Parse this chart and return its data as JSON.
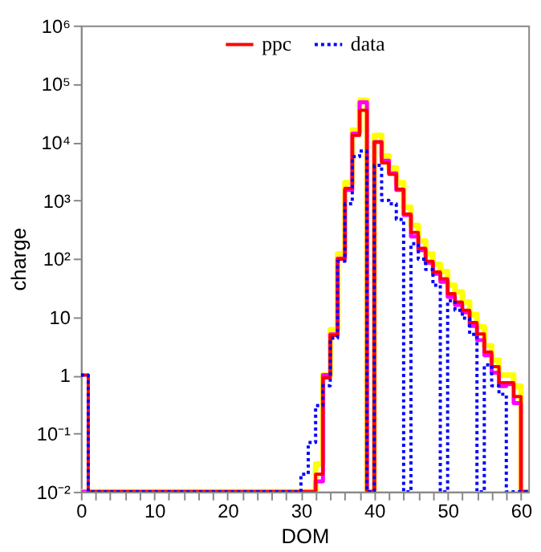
{
  "chart_data": {
    "type": "histogram",
    "xlabel": "DOM",
    "ylabel": "charge",
    "bins": [
      0,
      1,
      2,
      3,
      4,
      5,
      6,
      7,
      8,
      9,
      10,
      11,
      12,
      13,
      14,
      15,
      16,
      17,
      18,
      19,
      20,
      21,
      22,
      23,
      24,
      25,
      26,
      27,
      28,
      29,
      30,
      31,
      32,
      33,
      34,
      35,
      36,
      37,
      38,
      39,
      40,
      41,
      42,
      43,
      44,
      45,
      46,
      47,
      48,
      49,
      50,
      51,
      52,
      53,
      54,
      55,
      56,
      57,
      58,
      59,
      60,
      61
    ],
    "series": [
      {
        "color": "#ffff00",
        "values": [
          null,
          null,
          null,
          null,
          null,
          null,
          null,
          null,
          null,
          null,
          null,
          null,
          null,
          null,
          null,
          null,
          null,
          null,
          null,
          null,
          null,
          null,
          null,
          null,
          null,
          null,
          null,
          null,
          null,
          null,
          null,
          null,
          0.03,
          1,
          6,
          120,
          2000,
          16000,
          52000,
          null,
          13000,
          5800,
          3600,
          2000,
          760,
          370,
          200,
          120,
          80,
          60,
          35,
          27,
          18,
          11,
          6.8,
          3.2,
          1.8,
          1,
          1,
          0.65,
          null
        ]
      },
      {
        "color": "#ff00ff",
        "values": [
          null,
          null,
          null,
          null,
          null,
          null,
          null,
          null,
          null,
          null,
          null,
          null,
          null,
          null,
          null,
          null,
          null,
          null,
          null,
          null,
          null,
          null,
          null,
          null,
          null,
          null,
          null,
          null,
          null,
          null,
          null,
          null,
          0.015,
          1,
          5,
          100,
          1500,
          14000,
          48000,
          null,
          10000,
          4800,
          2900,
          1500,
          560,
          240,
          140,
          85,
          55,
          40,
          22,
          16,
          12,
          7,
          4,
          2.2,
          1.1,
          0.65,
          0.7,
          0.33,
          null
        ]
      },
      {
        "name": "ppc",
        "color": "#ff0000",
        "line_style": "solid",
        "values": [
          1,
          null,
          null,
          null,
          null,
          null,
          null,
          null,
          null,
          null,
          null,
          null,
          null,
          null,
          null,
          null,
          null,
          null,
          null,
          null,
          null,
          null,
          null,
          null,
          null,
          null,
          null,
          null,
          null,
          null,
          null,
          null,
          0.02,
          0.9,
          4.8,
          98,
          1600,
          13000,
          35000,
          null,
          10000,
          4400,
          2800,
          1550,
          580,
          280,
          150,
          90,
          59,
          45,
          25,
          18,
          13,
          8,
          5.1,
          2.5,
          1.4,
          0.74,
          0.74,
          0.43,
          null
        ]
      },
      {
        "name": "data",
        "color": "#0000ff",
        "line_style": "dotted",
        "values": [
          1,
          null,
          null,
          null,
          null,
          null,
          null,
          null,
          null,
          null,
          null,
          null,
          null,
          null,
          null,
          null,
          null,
          null,
          null,
          null,
          null,
          null,
          null,
          null,
          null,
          null,
          null,
          null,
          null,
          null,
          0.02,
          0.07,
          0.3,
          0.66,
          4.3,
          90,
          870,
          5600,
          7000,
          null,
          4000,
          1000,
          870,
          470,
          null,
          180,
          98,
          65,
          35,
          null,
          19,
          13,
          9.5,
          5,
          null,
          1.5,
          0.66,
          0.47,
          null,
          null,
          null
        ]
      }
    ],
    "xlim": [
      0,
      61
    ],
    "xticks": [
      0,
      {
        "value": 2,
        "label": null
      },
      {
        "value": 4,
        "label": null
      },
      {
        "value": 6,
        "label": null
      },
      {
        "value": 8,
        "label": null
      },
      10,
      {
        "value": 12,
        "label": null
      },
      {
        "value": 14,
        "label": null
      },
      {
        "value": 16,
        "label": null
      },
      {
        "value": 18,
        "label": null
      },
      20,
      {
        "value": 22,
        "label": null
      },
      {
        "value": 24,
        "label": null
      },
      {
        "value": 26,
        "label": null
      },
      {
        "value": 28,
        "label": null
      },
      30,
      {
        "value": 32,
        "label": null
      },
      {
        "value": 34,
        "label": null
      },
      {
        "value": 36,
        "label": null
      },
      {
        "value": 38,
        "label": null
      },
      40,
      {
        "value": 42,
        "label": null
      },
      {
        "value": 44,
        "label": null
      },
      {
        "value": 46,
        "label": null
      },
      {
        "value": 48,
        "label": null
      },
      50,
      {
        "value": 52,
        "label": null
      },
      {
        "value": 54,
        "label": null
      },
      {
        "value": 56,
        "label": null
      },
      {
        "value": 58,
        "label": null
      },
      60
    ],
    "ylim": [
      0.01,
      1000000
    ],
    "yticks": [
      {
        "value": 0.01,
        "label": "10⁻²"
      },
      {
        "value": 0.1,
        "label": "10⁻¹"
      },
      1,
      10,
      {
        "value": 100,
        "label": "10²"
      },
      {
        "value": 1000,
        "label": "10³"
      },
      {
        "value": 10000,
        "label": "10⁴"
      },
      {
        "value": 100000,
        "label": "10⁵"
      },
      {
        "value": 1000000,
        "label": "10⁶"
      }
    ],
    "log": "y",
    "grid": false,
    "legend": "top"
  }
}
